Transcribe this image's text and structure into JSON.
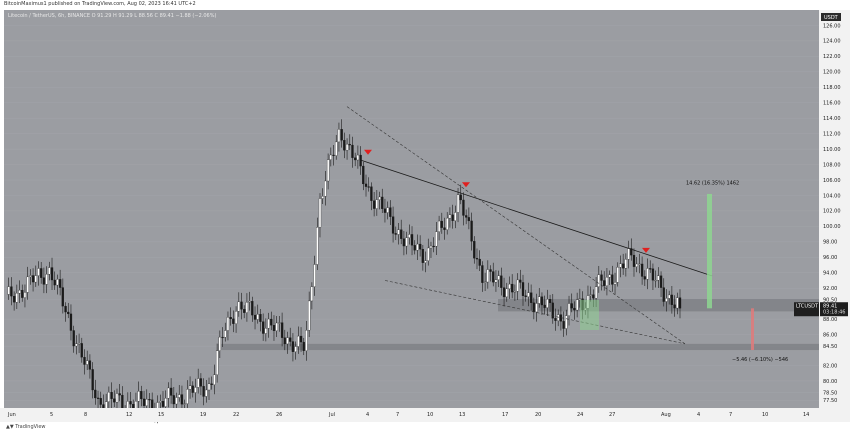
{
  "header": {
    "text": "BitcoinMaximus1 published on TradingView.com, Aug 02, 2023 16:41 UTC+2"
  },
  "symbol_line": {
    "text": "Litecoin / TetherUS, 6h, BINANCE  O 91.29  H 91.29  L 88.56  C 89.41  −1.88 (−2.06%)"
  },
  "footer": {
    "text": "TradingView"
  },
  "colors": {
    "background": "#9b9da2",
    "up": "#ffffff",
    "down": "#1a1a1a",
    "marker": "#e0201f",
    "green_box": "#8ed690",
    "red_box": "#e07a7a",
    "zone": "#7d7f84"
  },
  "chart_data": {
    "type": "candlestick",
    "pair": "LTCUSDT",
    "quote_currency": "USDT",
    "price_label": "89.41",
    "countdown_label": "03:18:46",
    "ylim": [
      76.5,
      128
    ],
    "y_ticks": [
      "77.50",
      "78.50",
      "80.00",
      "82.00",
      "84.50",
      "86.00",
      "88.00",
      "90.50",
      "92.00",
      "94.00",
      "96.00",
      "98.00",
      "100.00",
      "102.00",
      "104.00",
      "106.00",
      "108.00",
      "110.00",
      "112.00",
      "114.00",
      "116.00",
      "118.00",
      "120.00",
      "122.00",
      "124.00",
      "126.00"
    ],
    "x_ticks": [
      "Jun",
      "5",
      "8",
      "12",
      "15",
      "19",
      "22",
      "26",
      "Jul",
      "4",
      "7",
      "10",
      "13",
      "17",
      "20",
      "24",
      "27",
      "Aug",
      "4",
      "7",
      "10",
      "14"
    ],
    "candles_sample_daily_close": [
      {
        "date": "Jun 01",
        "close": 90.5
      },
      {
        "date": "Jun 05",
        "close": 94.5
      },
      {
        "date": "Jun 09",
        "close": 77.5
      },
      {
        "date": "Jun 15",
        "close": 77.0
      },
      {
        "date": "Jun 20",
        "close": 79.5
      },
      {
        "date": "Jun 21",
        "close": 85.5
      },
      {
        "date": "Jun 23",
        "close": 90.0
      },
      {
        "date": "Jun 29",
        "close": 84.0
      },
      {
        "date": "Jun 30",
        "close": 103.5
      },
      {
        "date": "Jul 02",
        "close": 112.5
      },
      {
        "date": "Jul 05",
        "close": 104.0
      },
      {
        "date": "Jul 08",
        "close": 97.5
      },
      {
        "date": "Jul 10",
        "close": 96.5
      },
      {
        "date": "Jul 13",
        "close": 103.5
      },
      {
        "date": "Jul 16",
        "close": 93.5
      },
      {
        "date": "Jul 20",
        "close": 91.5
      },
      {
        "date": "Jul 24",
        "close": 88.0
      },
      {
        "date": "Jul 27",
        "close": 91.5
      },
      {
        "date": "Jul 30",
        "close": 96.0
      },
      {
        "date": "Aug 01",
        "close": 89.41
      }
    ],
    "annotations": {
      "upper_target": "14.62 (16.35%) 1462",
      "lower_target": "−5.46 (−6.10%) −546"
    },
    "zones": [
      {
        "name": "support",
        "low": 89.0,
        "high": 90.6
      },
      {
        "name": "lower-support",
        "low": 84.0,
        "high": 84.8
      }
    ]
  }
}
